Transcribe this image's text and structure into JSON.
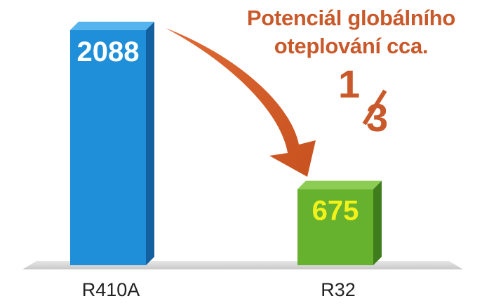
{
  "callout": {
    "line1": "Potenciál globálního",
    "line2": "oteplování cca.",
    "fraction_numerator": "1",
    "fraction_denominator": "3"
  },
  "colors": {
    "accent": "#c9592a",
    "bar_r410a": "#1e8fd8",
    "bar_r32": "#66b22e",
    "label_r410a": "#ffffff",
    "label_r32": "#f2f21a",
    "floor": "#d8d8d8"
  },
  "chart_data": {
    "type": "bar",
    "categories": [
      "R410A",
      "R32"
    ],
    "values": [
      2088,
      675
    ],
    "value_labels": [
      "2088",
      "675"
    ],
    "title": "",
    "xlabel": "",
    "ylabel": "",
    "ylim": [
      0,
      2300
    ],
    "grid": false
  }
}
